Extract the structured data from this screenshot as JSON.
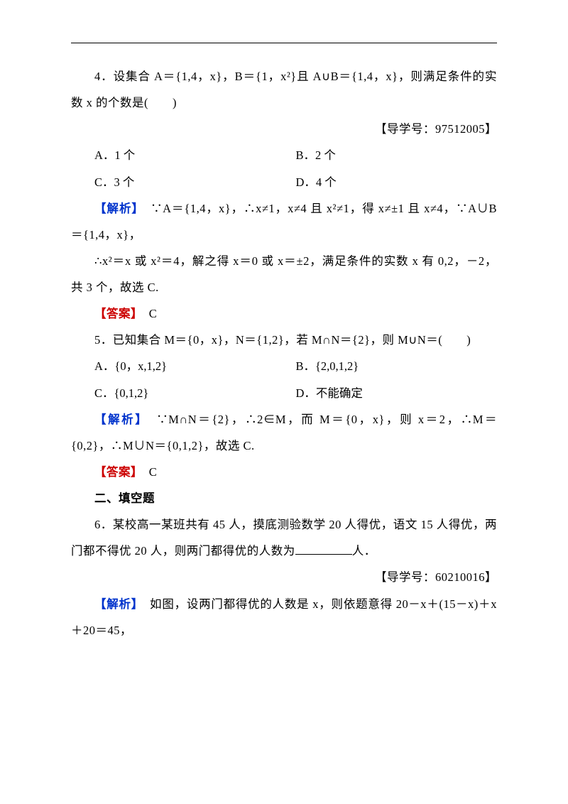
{
  "colors": {
    "text": "#000000",
    "analysis_label": "#0033cc",
    "answer_label": "#cc0000",
    "background": "#ffffff"
  },
  "typography": {
    "body_fontsize_pt": 12,
    "line_height": 2.25,
    "font_family": "SimSun"
  },
  "q4": {
    "stem": "4．设集合 A＝{1,4，x}，B＝{1，x²}且 A∪B＝{1,4，x}，则满足条件的实数 x 的个数是(　　)",
    "guide": "【导学号：97512005】",
    "opt_a": "A．1 个",
    "opt_b": "B．2 个",
    "opt_c": "C．3 个",
    "opt_d": "D．4 个",
    "analysis_label": "【解析】",
    "analysis_1": "　∵A＝{1,4，x}，∴x≠1，x≠4 且 x²≠1，得 x≠±1 且 x≠4，∵A∪B＝{1,4，x}，",
    "analysis_2": "∴x²＝x 或 x²＝4，解之得 x＝0 或 x＝±2，满足条件的实数 x 有 0,2，－2，共 3 个，故选 C.",
    "answer_label": "【答案】",
    "answer": "　C"
  },
  "q5": {
    "stem": "5．已知集合 M＝{0，x}，N＝{1,2}，若 M∩N＝{2}，则 M∪N＝(　　)",
    "opt_a": "A．{0，x,1,2}",
    "opt_b": "B．{2,0,1,2}",
    "opt_c": "C．{0,1,2}",
    "opt_d": "D．不能确定",
    "analysis_label": "【解析】",
    "analysis": "　∵M∩N＝{2}，∴2∈M，而 M＝{0，x}，则 x＝2，∴M＝{0,2}，∴M∪N＝{0,1,2}，故选 C.",
    "answer_label": "【答案】",
    "answer": "　C"
  },
  "section2": "二、填空题",
  "q6": {
    "stem_1": "6．某校高一某班共有 45 人，摸底测验数学 20 人得优，语文 15 人得优，两门都不得优 20 人，则两门都得优的人数为",
    "stem_2": "人．",
    "guide": "【导学号：60210016】",
    "analysis_label": "【解析】",
    "analysis": "　如图，设两门都得优的人数是 x，则依题意得 20－x＋(15－x)＋x＋20＝45，"
  }
}
